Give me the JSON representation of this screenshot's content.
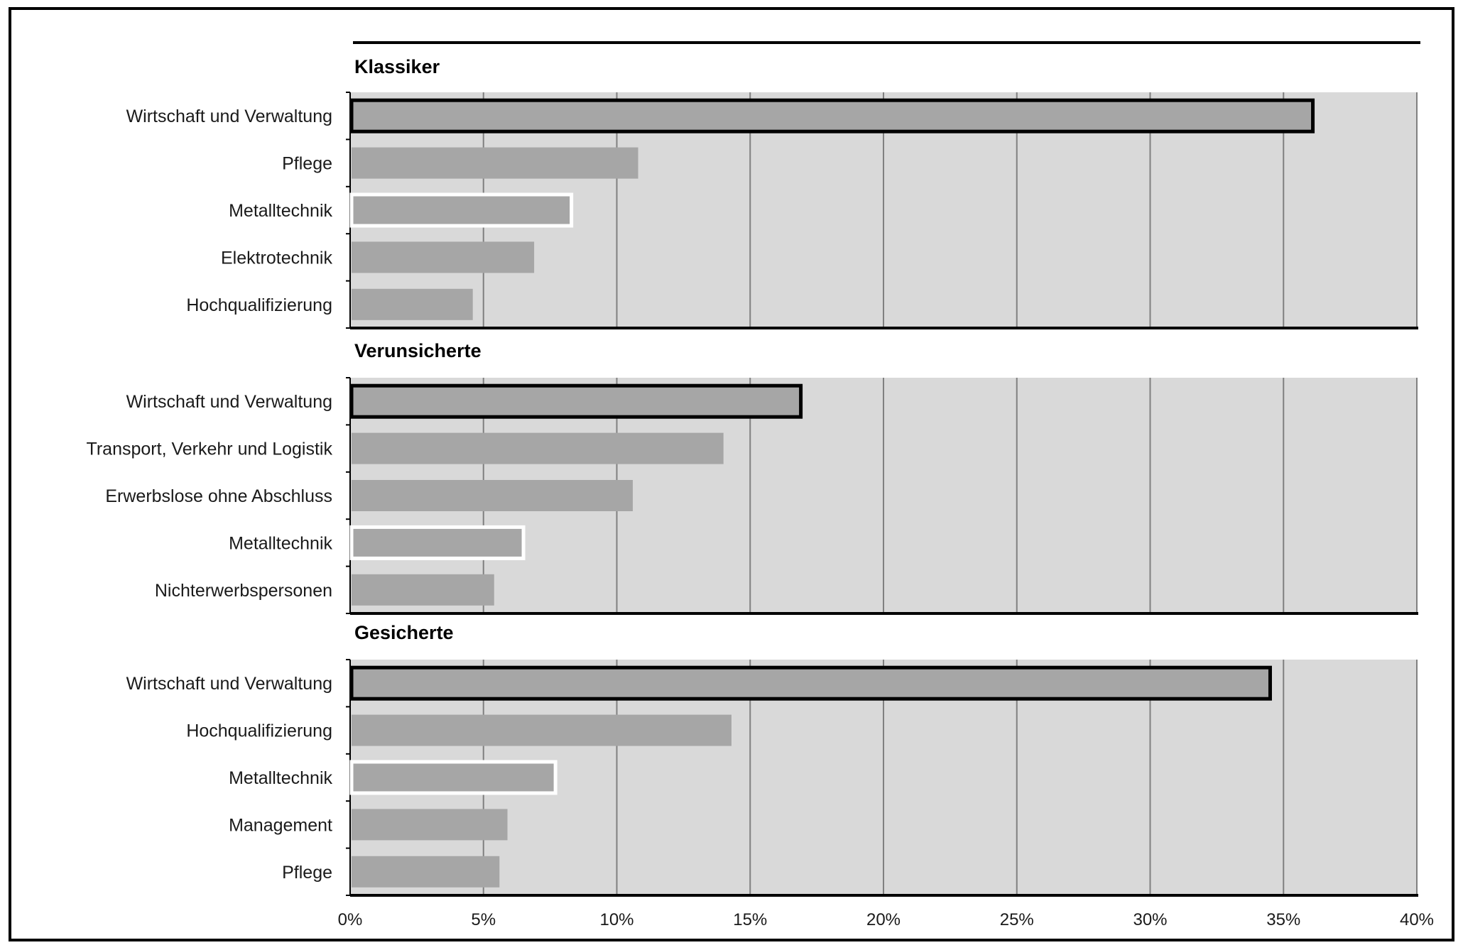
{
  "chart_data": {
    "type": "bar",
    "orientation": "horizontal",
    "x_axis": {
      "min": 0,
      "max": 40,
      "step": 5,
      "tick_labels": [
        "0%",
        "5%",
        "10%",
        "15%",
        "20%",
        "25%",
        "30%",
        "35%",
        "40%"
      ]
    },
    "grid": true,
    "colors": {
      "bar": "#a6a6a6",
      "plot_background": "#d9d9d9",
      "grid": "#808080",
      "highlight_dark": "#000000",
      "highlight_light": "#ffffff"
    },
    "groups": [
      {
        "name": "Klassiker",
        "bars": [
          {
            "label": "Wirtschaft und Verwaltung",
            "value": 36.1,
            "highlight": "dark"
          },
          {
            "label": "Pflege",
            "value": 10.8,
            "highlight": "none"
          },
          {
            "label": "Metalltechnik",
            "value": 8.3,
            "highlight": "light"
          },
          {
            "label": "Elektrotechnik",
            "value": 6.9,
            "highlight": "none"
          },
          {
            "label": "Hochqualifizierung",
            "value": 4.6,
            "highlight": "none"
          }
        ]
      },
      {
        "name": "Verunsicherte",
        "bars": [
          {
            "label": "Wirtschaft und Verwaltung",
            "value": 16.9,
            "highlight": "dark"
          },
          {
            "label": "Transport, Verkehr und Logistik",
            "value": 14.0,
            "highlight": "none"
          },
          {
            "label": "Erwerbslose ohne Abschluss",
            "value": 10.6,
            "highlight": "none"
          },
          {
            "label": "Metalltechnik",
            "value": 6.5,
            "highlight": "light"
          },
          {
            "label": "Nichterwerbspersonen",
            "value": 5.4,
            "highlight": "none"
          }
        ]
      },
      {
        "name": "Gesicherte",
        "bars": [
          {
            "label": "Wirtschaft und Verwaltung",
            "value": 34.5,
            "highlight": "dark"
          },
          {
            "label": "Hochqualifizierung",
            "value": 14.3,
            "highlight": "none"
          },
          {
            "label": "Metalltechnik",
            "value": 7.7,
            "highlight": "light"
          },
          {
            "label": "Management",
            "value": 5.9,
            "highlight": "none"
          },
          {
            "label": "Pflege",
            "value": 5.6,
            "highlight": "none"
          }
        ]
      }
    ]
  }
}
